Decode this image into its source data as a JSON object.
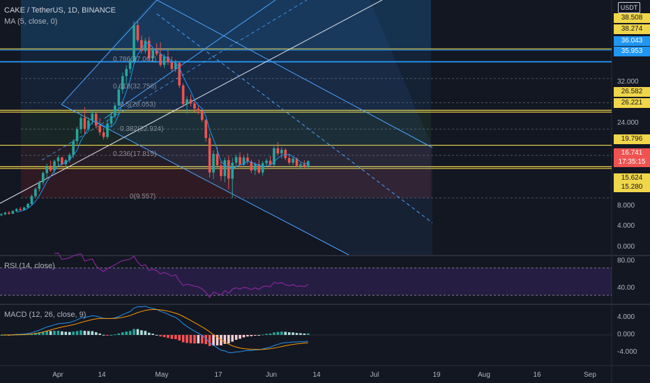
{
  "header": {
    "symbol_line": "CAKE / TetherUS, 1D, BINANCE",
    "ma_legend": "MA (5, close, 0)",
    "currency": "USDT"
  },
  "colors": {
    "bg": "#131722",
    "up": "#26a69a",
    "down": "#ef5350",
    "yellow": "#f0d64a",
    "blue": "#2196f3",
    "channel": "#4aa3ff",
    "rsi": "#9c27b0",
    "macd": "#2196f3",
    "signal": "#ff9800"
  },
  "price_axis": {
    "labels": [
      "32.000",
      "24.000",
      "8.000",
      "4.000",
      "0.000"
    ],
    "visible_range": [
      -1.5,
      48
    ]
  },
  "price_tags": [
    {
      "text": "38.508",
      "kind": "yellow"
    },
    {
      "text": "38.274",
      "kind": "yellow"
    },
    {
      "text": "36.043",
      "kind": "blue"
    },
    {
      "text": "35.953",
      "kind": "blue"
    },
    {
      "text": "26.582",
      "kind": "yellow"
    },
    {
      "text": "26.221",
      "kind": "yellow"
    },
    {
      "text": "19.796",
      "kind": "yellow"
    },
    {
      "text": "16.741",
      "kind": "current"
    },
    {
      "text": "17:35:15",
      "kind": "countdown"
    },
    {
      "text": "15.624",
      "kind": "yellow"
    },
    {
      "text": "15.280",
      "kind": "yellow"
    }
  ],
  "fib_labels": [
    {
      "text": "0.786(37.061)",
      "price": 36.3
    },
    {
      "text": "0.618(32.756)",
      "price": 31.0
    },
    {
      "text": "0.5(28.053)",
      "price": 27.4
    },
    {
      "text": "0.382(22.924)",
      "price": 22.7
    },
    {
      "text": "0.236(17.815)",
      "price": 17.9
    },
    {
      "text": "0(9.557)",
      "price": 9.6
    }
  ],
  "horizontal_levels": {
    "yellow": [
      38.508,
      26.582,
      26.221,
      19.796,
      15.624,
      15.28
    ],
    "blue": [
      38.274,
      36.043,
      35.953
    ]
  },
  "rsi": {
    "legend": "RSI (14, close)",
    "axis_labels": [
      "80.00",
      "40.00"
    ],
    "upper": 70,
    "lower": 30
  },
  "macd": {
    "legend": "MACD (12, 26, close, 9)",
    "axis_labels": [
      "4.000",
      "0.000",
      "-4.000"
    ]
  },
  "time_axis": {
    "labels": [
      "Apr",
      "14",
      "May",
      "17",
      "Jun",
      "14",
      "Jul",
      "19",
      "Aug",
      "16",
      "Sep"
    ]
  },
  "chart_data": {
    "type": "candlestick",
    "title": "CAKE / TetherUS, 1D, BINANCE",
    "candles": [
      [
        6.2,
        6.6,
        6.0,
        6.4
      ],
      [
        6.4,
        6.9,
        6.2,
        6.7
      ],
      [
        6.7,
        7.0,
        6.3,
        6.5
      ],
      [
        6.5,
        7.2,
        6.4,
        7.0
      ],
      [
        7.0,
        7.6,
        6.8,
        7.4
      ],
      [
        7.4,
        7.8,
        7.0,
        7.2
      ],
      [
        7.2,
        7.9,
        7.1,
        7.7
      ],
      [
        7.7,
        8.6,
        7.5,
        8.4
      ],
      [
        8.4,
        10.2,
        8.2,
        9.9
      ],
      [
        9.9,
        11.6,
        9.5,
        11.3
      ],
      [
        11.3,
        12.9,
        10.8,
        12.6
      ],
      [
        12.6,
        14.7,
        12.1,
        14.4
      ],
      [
        14.4,
        16.2,
        13.2,
        15.6
      ],
      [
        15.6,
        16.8,
        14.6,
        14.9
      ],
      [
        14.9,
        17.0,
        14.3,
        16.7
      ],
      [
        16.7,
        17.8,
        15.9,
        17.4
      ],
      [
        17.4,
        17.6,
        15.8,
        16.1
      ],
      [
        16.1,
        17.2,
        15.5,
        16.9
      ],
      [
        16.9,
        18.3,
        16.4,
        17.9
      ],
      [
        17.9,
        21.0,
        17.3,
        20.6
      ],
      [
        20.6,
        23.4,
        20.0,
        22.9
      ],
      [
        22.9,
        25.6,
        22.1,
        25.1
      ],
      [
        25.1,
        27.2,
        22.0,
        23.0
      ],
      [
        23.0,
        25.2,
        22.4,
        24.6
      ],
      [
        24.6,
        26.6,
        23.8,
        25.9
      ],
      [
        25.9,
        26.1,
        23.1,
        23.6
      ],
      [
        23.6,
        25.0,
        21.7,
        22.3
      ],
      [
        22.3,
        23.2,
        20.9,
        21.4
      ],
      [
        21.4,
        24.6,
        21.0,
        24.0
      ],
      [
        24.0,
        26.2,
        23.4,
        25.5
      ],
      [
        25.5,
        28.0,
        25.0,
        27.5
      ],
      [
        27.5,
        31.2,
        27.0,
        30.6
      ],
      [
        30.6,
        33.9,
        29.8,
        33.2
      ],
      [
        33.2,
        35.3,
        31.6,
        34.6
      ],
      [
        34.6,
        36.6,
        33.8,
        36.1
      ],
      [
        36.1,
        43.9,
        35.5,
        43.1
      ],
      [
        43.1,
        44.0,
        39.8,
        40.2
      ],
      [
        40.2,
        41.1,
        37.6,
        38.1
      ],
      [
        38.1,
        40.6,
        37.6,
        40.1
      ],
      [
        40.1,
        40.8,
        36.2,
        36.7
      ],
      [
        36.7,
        38.8,
        36.1,
        38.3
      ],
      [
        38.3,
        39.6,
        37.1,
        37.5
      ],
      [
        37.5,
        39.8,
        35.0,
        35.4
      ],
      [
        35.4,
        37.5,
        34.8,
        37.0
      ],
      [
        37.0,
        38.2,
        35.4,
        35.9
      ],
      [
        35.9,
        37.0,
        34.1,
        34.6
      ],
      [
        34.6,
        36.4,
        34.0,
        35.8
      ],
      [
        35.8,
        36.0,
        30.9,
        31.4
      ],
      [
        31.4,
        31.8,
        27.2,
        27.8
      ],
      [
        27.8,
        29.3,
        25.9,
        28.7
      ],
      [
        28.7,
        29.6,
        27.3,
        27.9
      ],
      [
        27.9,
        28.4,
        26.3,
        26.9
      ],
      [
        26.9,
        27.6,
        25.8,
        26.5
      ],
      [
        26.5,
        26.8,
        24.3,
        24.7
      ],
      [
        24.7,
        24.9,
        20.5,
        21.2
      ],
      [
        21.2,
        22.0,
        13.5,
        14.5
      ],
      [
        14.5,
        18.8,
        13.2,
        18.1
      ],
      [
        18.1,
        19.4,
        15.4,
        15.9
      ],
      [
        15.9,
        16.7,
        12.9,
        13.8
      ],
      [
        13.8,
        17.4,
        12.6,
        16.9
      ],
      [
        16.9,
        17.8,
        11.2,
        13.3
      ],
      [
        13.3,
        17.3,
        9.5,
        16.4
      ],
      [
        16.4,
        18.0,
        15.6,
        17.5
      ],
      [
        17.5,
        18.4,
        15.5,
        16.0
      ],
      [
        16.0,
        17.8,
        15.5,
        17.4
      ],
      [
        17.4,
        18.2,
        16.1,
        16.6
      ],
      [
        16.6,
        17.0,
        14.4,
        14.9
      ],
      [
        14.9,
        16.5,
        14.0,
        16.1
      ],
      [
        16.1,
        17.0,
        14.2,
        14.5
      ],
      [
        14.5,
        16.7,
        13.9,
        16.3
      ],
      [
        16.3,
        17.2,
        15.8,
        16.8
      ],
      [
        16.8,
        17.7,
        15.6,
        16.0
      ],
      [
        16.0,
        19.6,
        15.7,
        19.2
      ],
      [
        19.2,
        20.4,
        17.8,
        18.2
      ],
      [
        18.2,
        19.4,
        17.2,
        18.9
      ],
      [
        18.9,
        19.2,
        16.9,
        17.3
      ],
      [
        17.3,
        18.1,
        16.0,
        16.4
      ],
      [
        16.4,
        17.6,
        15.9,
        17.2
      ],
      [
        17.2,
        17.4,
        15.5,
        15.8
      ],
      [
        15.8,
        16.4,
        15.1,
        16.1
      ],
      [
        16.1,
        16.9,
        15.3,
        15.6
      ],
      [
        15.6,
        16.8,
        15.4,
        16.741
      ]
    ],
    "ma": {
      "name": "MA (5, close, 0)",
      "period": 5
    }
  }
}
